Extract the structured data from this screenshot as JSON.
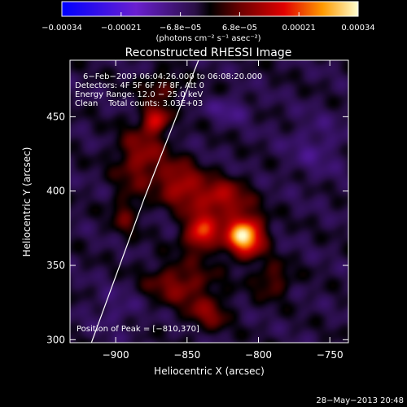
{
  "chart_data": {
    "type": "heatmap",
    "title": "Reconstructed RHESSI Image",
    "xlabel": "Heliocentric X (arcsec)",
    "ylabel": "Heliocentric Y (arcsec)",
    "xlim": [
      -932,
      -737
    ],
    "ylim": [
      298,
      488
    ],
    "xticks": [
      -900,
      -850,
      -800,
      -750
    ],
    "xtick_labels": [
      "−900",
      "−850",
      "−800",
      "−750"
    ],
    "yticks": [
      300,
      350,
      400,
      450
    ],
    "ytick_labels": [
      "300",
      "350",
      "400",
      "450"
    ],
    "colorbar": {
      "range": [
        -0.00034,
        0.00034
      ],
      "tick_labels": [
        "−0.00034",
        "−0.00021",
        "−6.8e−05",
        "6.8e−05",
        "0.00021",
        "0.00034"
      ],
      "unit_label": "(photons cm⁻² s⁻¹ asec⁻²)"
    },
    "annotations": [
      "6−Feb−2003 06:04:26.000 to 06:08:20.000",
      "Detectors: 4F 5F 6F 7F 8F, Att 0",
      "Energy Range: 12.0 − 25.0 keV",
      "Clean    Total counts: 3.03E+03"
    ],
    "peak_label": "Position of Peak = [−810,370]",
    "peak": {
      "x": -810,
      "y": 370
    },
    "sources": [
      {
        "x": -810,
        "y": 370,
        "sx": 9,
        "sy": 9,
        "amp": 1.0
      },
      {
        "x": -840,
        "y": 372,
        "sx": 8,
        "sy": 8,
        "amp": 0.65
      },
      {
        "x": -828,
        "y": 395,
        "sx": 14,
        "sy": 9,
        "amp": 0.45
      },
      {
        "x": -855,
        "y": 405,
        "sx": 10,
        "sy": 10,
        "amp": 0.4
      },
      {
        "x": -872,
        "y": 448,
        "sx": 6,
        "sy": 6,
        "amp": 0.55
      },
      {
        "x": -882,
        "y": 422,
        "sx": 12,
        "sy": 14,
        "amp": 0.35
      },
      {
        "x": -855,
        "y": 338,
        "sx": 16,
        "sy": 10,
        "amp": 0.32
      },
      {
        "x": -835,
        "y": 318,
        "sx": 10,
        "sy": 8,
        "amp": 0.28
      },
      {
        "x": -893,
        "y": 385,
        "sx": 7,
        "sy": 10,
        "amp": 0.22
      },
      {
        "x": -868,
        "y": 470,
        "sx": 10,
        "sy": 6,
        "amp": 0.25
      },
      {
        "x": -790,
        "y": 340,
        "sx": 9,
        "sy": 8,
        "amp": 0.25
      },
      {
        "x": -820,
        "y": 455,
        "sx": 10,
        "sy": 6,
        "amp": -0.18
      },
      {
        "x": -760,
        "y": 430,
        "sx": 14,
        "sy": 14,
        "amp": -0.14
      },
      {
        "x": -900,
        "y": 320,
        "sx": 12,
        "sy": 10,
        "amp": -0.12
      }
    ],
    "limb_line": [
      [
        -917,
        298
      ],
      [
        -880,
        395
      ],
      [
        -842,
        488
      ]
    ]
  },
  "footer": {
    "timestamp": "28−May−2013 20:48"
  }
}
